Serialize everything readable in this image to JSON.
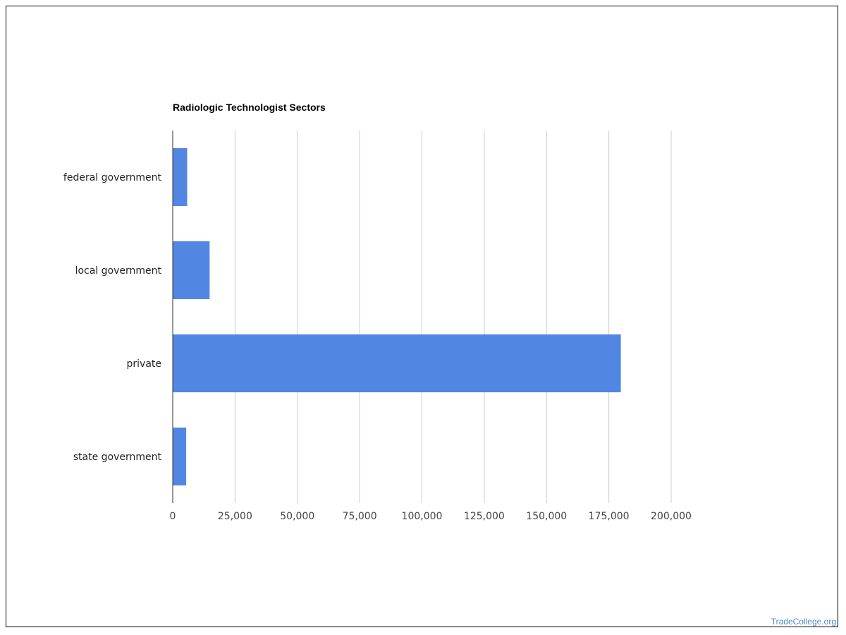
{
  "chart_data": {
    "type": "bar",
    "orientation": "horizontal",
    "title": "Radiologic Technologist Sectors",
    "xlabel": "",
    "ylabel": "",
    "categories": [
      "federal government",
      "local government",
      "private",
      "state government"
    ],
    "values": [
      5800,
      14800,
      179800,
      5400
    ],
    "xlim": [
      0,
      200000
    ],
    "xticks": [
      0,
      25000,
      50000,
      75000,
      100000,
      125000,
      150000,
      175000,
      200000
    ],
    "xtick_labels": [
      "0",
      "25,000",
      "50,000",
      "75,000",
      "100,000",
      "125,000",
      "150,000",
      "175,000",
      "200,000"
    ],
    "grid": true,
    "legend": "none",
    "bar_color": "#5186e3"
  },
  "footer": {
    "watermark": "TradeCollege.org"
  }
}
